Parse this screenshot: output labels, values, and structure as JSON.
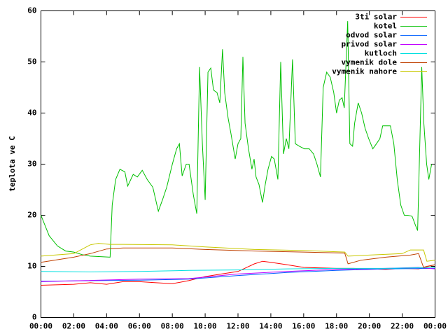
{
  "chart_data": {
    "type": "line",
    "ylabel": "teplota ve C",
    "xlim": [
      0,
      24
    ],
    "xticks": [
      {
        "value": 0,
        "label": "00:00"
      },
      {
        "value": 2,
        "label": "02:00"
      },
      {
        "value": 4,
        "label": "04:00"
      },
      {
        "value": 6,
        "label": "06:00"
      },
      {
        "value": 8,
        "label": "08:00"
      },
      {
        "value": 10,
        "label": "10:00"
      },
      {
        "value": 12,
        "label": "12:00"
      },
      {
        "value": 14,
        "label": "14:00"
      },
      {
        "value": 16,
        "label": "16:00"
      },
      {
        "value": 18,
        "label": "18:00"
      },
      {
        "value": 20,
        "label": "20:00"
      },
      {
        "value": 22,
        "label": "22:00"
      },
      {
        "value": 24,
        "label": "00:00"
      }
    ],
    "ylim": [
      0,
      60
    ],
    "yticks": [
      0,
      10,
      20,
      30,
      40,
      50,
      60
    ],
    "grid": false,
    "legend": "top-right",
    "series": [
      {
        "name": "3ti solar",
        "color": "#ff0000",
        "x": [
          0,
          2,
          3,
          4,
          5,
          6,
          7,
          8,
          9,
          10,
          11,
          12,
          13,
          13.5,
          14,
          15,
          16,
          17,
          18,
          19,
          20,
          21,
          22,
          23,
          23.5,
          24
        ],
        "values": [
          6.3,
          6.5,
          6.8,
          6.5,
          7.0,
          7.0,
          6.8,
          6.6,
          7.2,
          8,
          8.5,
          9.0,
          10.5,
          11,
          10.8,
          10.3,
          9.8,
          9.7,
          9.6,
          9.6,
          9.5,
          9.4,
          9.6,
          9.5,
          10.0,
          10.3
        ]
      },
      {
        "name": "kotel",
        "color": "#00c000",
        "x": [
          0,
          0.5,
          1,
          1.5,
          2,
          2.5,
          3,
          4.21,
          4.34,
          4.55,
          4.81,
          5.11,
          5.28,
          5.62,
          5.87,
          6.17,
          6.47,
          6.81,
          7.15,
          7.4,
          7.66,
          8.0,
          8.26,
          8.43,
          8.6,
          8.85,
          9.02,
          9.28,
          9.49,
          9.66,
          9.83,
          10.0,
          10.17,
          10.34,
          10.51,
          10.72,
          10.89,
          11.06,
          11.19,
          11.4,
          11.57,
          11.83,
          12.0,
          12.17,
          12.3,
          12.43,
          12.64,
          12.85,
          12.98,
          13.1,
          13.28,
          13.49,
          13.66,
          13.83,
          14.04,
          14.21,
          14.43,
          14.6,
          14.77,
          14.94,
          15.1,
          15.32,
          15.49,
          15.74,
          16.04,
          16.34,
          16.6,
          16.81,
          17.02,
          17.19,
          17.4,
          17.62,
          17.83,
          18.0,
          18.17,
          18.34,
          18.47,
          18.68,
          18.81,
          18.98,
          19.1,
          19.32,
          19.53,
          19.74,
          19.96,
          20.21,
          20.43,
          20.64,
          20.81,
          21.06,
          21.28,
          21.49,
          21.7,
          21.91,
          22.13,
          22.34,
          22.6,
          22.81,
          22.94,
          23.19,
          23.32,
          23.49,
          23.62,
          23.79
        ],
        "values": [
          20,
          16,
          14,
          13,
          12.8,
          12.3,
          12,
          11.8,
          22,
          27,
          29,
          28.5,
          25.7,
          28,
          27.5,
          28.8,
          27,
          25.5,
          20.8,
          23,
          25.5,
          30,
          33,
          34,
          27.7,
          30,
          30,
          24,
          20.3,
          49,
          34,
          23,
          48,
          48.8,
          44.5,
          44,
          42,
          52.5,
          44,
          39,
          36,
          31,
          34,
          35,
          51,
          38,
          33,
          29,
          31,
          27.5,
          26,
          22.5,
          26,
          29,
          31.5,
          31,
          27,
          50,
          32,
          35,
          33,
          50.5,
          34,
          33.5,
          33,
          33,
          32,
          30,
          27.5,
          45,
          48,
          47,
          44,
          40,
          42.5,
          43,
          41,
          58,
          34,
          33.5,
          38,
          42,
          40,
          37,
          35,
          33,
          34,
          35,
          37.5,
          37.5,
          37.5,
          34,
          27,
          22,
          20,
          20,
          19.8,
          18,
          17,
          49,
          38,
          30,
          27,
          30
        ]
      },
      {
        "name": "odvod solar",
        "color": "#0060ff",
        "x": [
          0,
          6,
          9,
          12,
          15,
          18,
          21,
          24
        ],
        "values": [
          7.1,
          7.3,
          7.5,
          8.2,
          8.8,
          9.2,
          9.5,
          9.6
        ]
      },
      {
        "name": "privod solar",
        "color": "#c000ff",
        "x": [
          0,
          6,
          9,
          12,
          15,
          18,
          21,
          23,
          24
        ],
        "values": [
          7.0,
          7.5,
          7.6,
          8.5,
          9.0,
          9.4,
          9.6,
          9.8,
          9.5
        ]
      },
      {
        "name": "kutloch",
        "color": "#00e0e0",
        "x": [
          0,
          3,
          6,
          9,
          12,
          15,
          18,
          21,
          24
        ],
        "values": [
          9,
          8.9,
          9.0,
          9.2,
          9.3,
          9.5,
          9.6,
          9.6,
          9.8
        ]
      },
      {
        "name": "vymenik dole",
        "color": "#c04000",
        "x": [
          0,
          2,
          3,
          4,
          5,
          8,
          10,
          13,
          16,
          18.5,
          18.7,
          19.5,
          21,
          22.5,
          23,
          23.3,
          24
        ],
        "values": [
          10.8,
          11.8,
          12.5,
          13.4,
          13.6,
          13.6,
          13.3,
          13,
          12.8,
          12.6,
          10.5,
          11.2,
          11.8,
          12.2,
          12.5,
          9.8,
          10.3
        ]
      },
      {
        "name": "vymenik nahore",
        "color": "#c8c800",
        "x": [
          0,
          2,
          3,
          3.5,
          4.2,
          5,
          8,
          10,
          13,
          16,
          18.5,
          18.7,
          20,
          22,
          22.5,
          23.3,
          23.5,
          24
        ],
        "values": [
          12,
          12.5,
          14.2,
          14.5,
          14.3,
          14.3,
          14.2,
          13.8,
          13.3,
          13.1,
          12.8,
          12,
          12.2,
          12.5,
          13.2,
          13.2,
          11,
          11.2
        ]
      }
    ]
  }
}
